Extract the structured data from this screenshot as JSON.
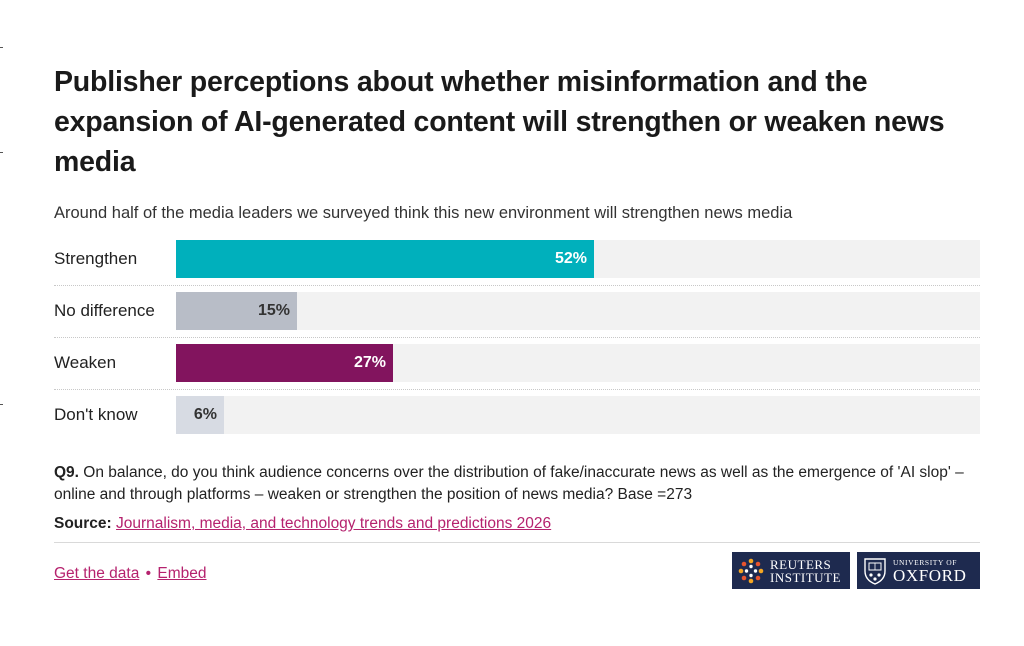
{
  "title": "Publisher perceptions about whether misinformation and the expansion of AI-generated content will strengthen or weaken news media",
  "subtitle": "Around half of the media leaders we surveyed think this new environment will strengthen news media",
  "chart_data": {
    "type": "bar",
    "orientation": "horizontal",
    "categories": [
      "Strengthen",
      "No difference",
      "Weaken",
      "Don't know"
    ],
    "values": [
      52,
      15,
      27,
      6
    ],
    "value_labels": [
      "52%",
      "15%",
      "27%",
      "6%"
    ],
    "bar_colors": [
      "#00b0bc",
      "#b8bdc7",
      "#82145e",
      "#d7dbe3"
    ],
    "label_colors": [
      "#ffffff",
      "#333333",
      "#ffffff",
      "#333333"
    ],
    "xlim": [
      0,
      100
    ],
    "track_color": "#f2f2f2",
    "grid": false,
    "legend": "none"
  },
  "note": {
    "label": "Q9.",
    "text": " On balance, do you think audience concerns over the distribution of fake/inaccurate news as well as the emergence of 'AI slop' – online and through platforms – weaken or strengthen the position of news media? Base =273"
  },
  "source": {
    "label": "Source:",
    "link_text": "Journalism, media, and technology trends and predictions 2026"
  },
  "footer": {
    "get_data": "Get the data",
    "separator": "•",
    "embed": "Embed"
  },
  "logos": {
    "reuters_line1": "REUTERS",
    "reuters_line2": "INSTITUTE",
    "oxford_line1": "UNIVERSITY OF",
    "oxford_line2": "OXFORD",
    "background": "#1e2a4f"
  }
}
